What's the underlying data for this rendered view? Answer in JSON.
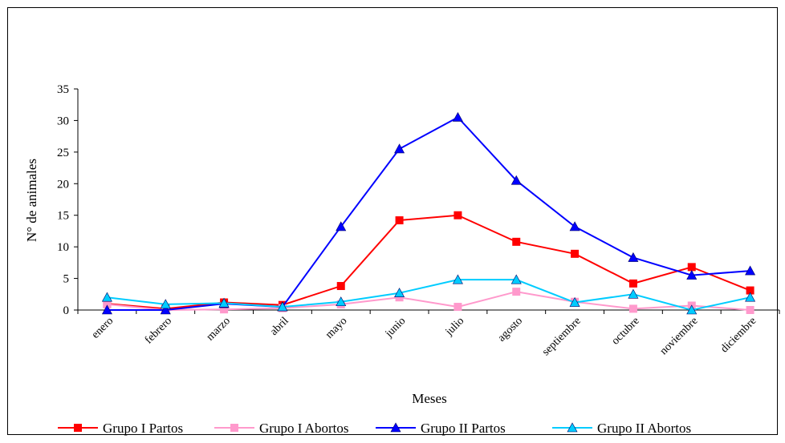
{
  "chart_data": {
    "type": "line",
    "title": "",
    "xlabel": "Meses",
    "ylabel": "N° de animales",
    "ylim": [
      0,
      35
    ],
    "yticks": [
      0,
      5,
      10,
      15,
      20,
      25,
      30,
      35
    ],
    "grid": false,
    "legend_position": "bottom",
    "categories": [
      "enero",
      "febrero",
      "marzo",
      "abril",
      "mayo",
      "junio",
      "julio",
      "agosto",
      "septiembre",
      "octubre",
      "noviembre",
      "diciembre"
    ],
    "series": [
      {
        "name": "Grupo I Partos",
        "color": "#ff0000",
        "marker": "square",
        "values": [
          1,
          0.2,
          1.2,
          0.8,
          3.8,
          14.2,
          15,
          10.8,
          8.9,
          4.2,
          6.8,
          3.1
        ]
      },
      {
        "name": "Grupo I Abortos",
        "color": "#ff99cc",
        "marker": "square",
        "values": [
          0.9,
          0,
          0.1,
          0.3,
          0.9,
          2,
          0.5,
          2.9,
          1.3,
          0.2,
          0.7,
          0
        ]
      },
      {
        "name": "Grupo II Partos",
        "color": "#0000ff",
        "marker": "triangle",
        "values": [
          0,
          0,
          1,
          0.5,
          13.2,
          25.5,
          30.5,
          20.5,
          13.2,
          8.3,
          5.5,
          6.2
        ]
      },
      {
        "name": "Grupo II Abortos",
        "color": "#00ccff",
        "marker": "triangle",
        "values": [
          2,
          0.9,
          1.1,
          0.5,
          1.3,
          2.7,
          4.8,
          4.8,
          1.2,
          2.5,
          0,
          2
        ]
      }
    ]
  }
}
